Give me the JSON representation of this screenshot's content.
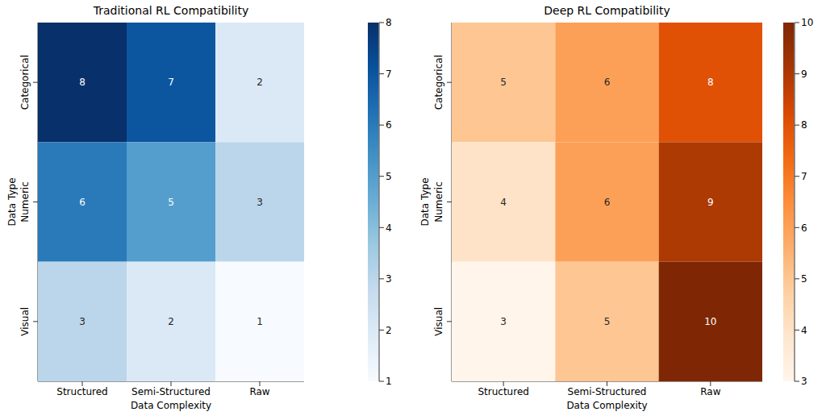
{
  "chart_data": [
    {
      "type": "heatmap",
      "title": "Traditional RL Compatibility",
      "x_label": "Data Complexity",
      "y_label": "Data Type",
      "x_categories": [
        "Structured",
        "Semi-Structured",
        "Raw"
      ],
      "y_categories": [
        "Categorical",
        "Numeric",
        "Visual"
      ],
      "cells": [
        [
          8,
          7,
          2
        ],
        [
          6,
          5,
          3
        ],
        [
          3,
          2,
          1
        ]
      ],
      "data_labels": true,
      "colorbar": {
        "lim": [
          1,
          8
        ],
        "ticks": [
          1,
          2,
          3,
          4,
          5,
          6,
          7,
          8
        ]
      }
    },
    {
      "type": "heatmap",
      "title": "Deep RL Compatibility",
      "x_label": "Data Complexity",
      "y_label": "Data Type",
      "x_categories": [
        "Structured",
        "Semi-Structured",
        "Raw"
      ],
      "y_categories": [
        "Categorical",
        "Numeric",
        "Visual"
      ],
      "cells": [
        [
          5,
          6,
          8
        ],
        [
          4,
          6,
          9
        ],
        [
          3,
          5,
          10
        ]
      ],
      "data_labels": true,
      "colorbar": {
        "lim": [
          3,
          10
        ],
        "ticks": [
          3,
          4,
          5,
          6,
          7,
          8,
          9,
          10
        ]
      }
    }
  ]
}
